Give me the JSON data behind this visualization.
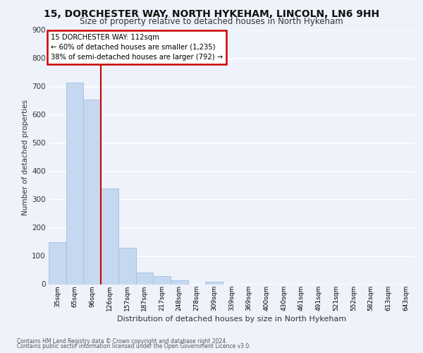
{
  "title1": "15, DORCHESTER WAY, NORTH HYKEHAM, LINCOLN, LN6 9HH",
  "title2": "Size of property relative to detached houses in North Hykeham",
  "xlabel": "Distribution of detached houses by size in North Hykeham",
  "ylabel": "Number of detached properties",
  "footnote1": "Contains HM Land Registry data © Crown copyright and database right 2024.",
  "footnote2": "Contains public sector information licensed under the Open Government Licence v3.0.",
  "bar_labels": [
    "35sqm",
    "65sqm",
    "96sqm",
    "126sqm",
    "157sqm",
    "187sqm",
    "217sqm",
    "248sqm",
    "278sqm",
    "309sqm",
    "339sqm",
    "369sqm",
    "400sqm",
    "430sqm",
    "461sqm",
    "491sqm",
    "521sqm",
    "552sqm",
    "582sqm",
    "613sqm",
    "643sqm"
  ],
  "bar_values": [
    150,
    715,
    655,
    340,
    130,
    42,
    30,
    13,
    0,
    10,
    0,
    0,
    0,
    0,
    0,
    0,
    0,
    0,
    0,
    0,
    0
  ],
  "bar_color": "#c5d8f0",
  "bar_edge_color": "#a0c0e0",
  "property_line_label": "15 DORCHESTER WAY: 112sqm",
  "annotation_line1": "← 60% of detached houses are smaller (1,235)",
  "annotation_line2": "38% of semi-detached houses are larger (792) →",
  "annotation_box_color": "#ffffff",
  "annotation_box_edge": "#cc0000",
  "vline_color": "#cc0000",
  "ylim": [
    0,
    900
  ],
  "yticks": [
    0,
    100,
    200,
    300,
    400,
    500,
    600,
    700,
    800,
    900
  ],
  "background_color": "#eef2fb",
  "plot_bg_color": "#eef2fb",
  "grid_color": "#ffffff",
  "title1_fontsize": 10,
  "title2_fontsize": 8.5
}
